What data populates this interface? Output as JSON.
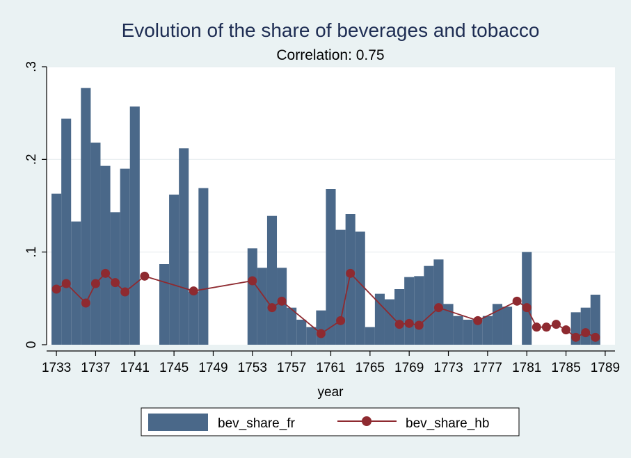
{
  "chart_data": {
    "title": "Evolution of the share of beverages and tobacco",
    "subtitle": "Correlation: 0.75",
    "xlabel": "year",
    "ylabel": "",
    "xlim": [
      1732,
      1790
    ],
    "ylim": [
      0,
      0.3
    ],
    "x_ticks": [
      1733,
      1737,
      1741,
      1745,
      1749,
      1753,
      1757,
      1761,
      1765,
      1769,
      1773,
      1777,
      1781,
      1785,
      1789
    ],
    "x_tick_labels": [
      "1733",
      "1737",
      "1741",
      "1745",
      "1749",
      "1753",
      "1757",
      "1761",
      "1765",
      "1769",
      "1773",
      "1777",
      "1781",
      "1785",
      "1789"
    ],
    "y_ticks": [
      0,
      0.1,
      0.2,
      0.3
    ],
    "y_tick_labels": [
      "0",
      ".1",
      ".2",
      ".3"
    ],
    "grid": true,
    "legend_position": "bottom",
    "colors": {
      "bar": "#4A6889",
      "line": "#8E2A30",
      "plot_bg": "#FFFFFF",
      "outer_bg": "#EAF2F3",
      "grid": "#E8EEF0"
    },
    "series": [
      {
        "name": "bev_share_fr",
        "type": "bar",
        "points": [
          {
            "x": 1733,
            "y": 0.163
          },
          {
            "x": 1734,
            "y": 0.244
          },
          {
            "x": 1735,
            "y": 0.133
          },
          {
            "x": 1736,
            "y": 0.277
          },
          {
            "x": 1737,
            "y": 0.218
          },
          {
            "x": 1738,
            "y": 0.193
          },
          {
            "x": 1739,
            "y": 0.143
          },
          {
            "x": 1740,
            "y": 0.19
          },
          {
            "x": 1741,
            "y": 0.257
          },
          {
            "x": 1744,
            "y": 0.087
          },
          {
            "x": 1745,
            "y": 0.162
          },
          {
            "x": 1746,
            "y": 0.212
          },
          {
            "x": 1747,
            "y": 0.057
          },
          {
            "x": 1748,
            "y": 0.169
          },
          {
            "x": 1753,
            "y": 0.104
          },
          {
            "x": 1754,
            "y": 0.083
          },
          {
            "x": 1755,
            "y": 0.139
          },
          {
            "x": 1756,
            "y": 0.083
          },
          {
            "x": 1757,
            "y": 0.04
          },
          {
            "x": 1758,
            "y": 0.027
          },
          {
            "x": 1759,
            "y": 0.019
          },
          {
            "x": 1760,
            "y": 0.037
          },
          {
            "x": 1761,
            "y": 0.168
          },
          {
            "x": 1762,
            "y": 0.124
          },
          {
            "x": 1763,
            "y": 0.141
          },
          {
            "x": 1764,
            "y": 0.122
          },
          {
            "x": 1765,
            "y": 0.019
          },
          {
            "x": 1766,
            "y": 0.055
          },
          {
            "x": 1767,
            "y": 0.049
          },
          {
            "x": 1768,
            "y": 0.06
          },
          {
            "x": 1769,
            "y": 0.073
          },
          {
            "x": 1770,
            "y": 0.074
          },
          {
            "x": 1771,
            "y": 0.085
          },
          {
            "x": 1772,
            "y": 0.092
          },
          {
            "x": 1773,
            "y": 0.044
          },
          {
            "x": 1774,
            "y": 0.031
          },
          {
            "x": 1775,
            "y": 0.027
          },
          {
            "x": 1776,
            "y": 0.028
          },
          {
            "x": 1777,
            "y": 0.031
          },
          {
            "x": 1778,
            "y": 0.044
          },
          {
            "x": 1779,
            "y": 0.041
          },
          {
            "x": 1781,
            "y": 0.1
          },
          {
            "x": 1786,
            "y": 0.035
          },
          {
            "x": 1787,
            "y": 0.04
          },
          {
            "x": 1788,
            "y": 0.054
          }
        ]
      },
      {
        "name": "bev_share_hb",
        "type": "line",
        "marker": "circle",
        "points": [
          {
            "x": 1733,
            "y": 0.06
          },
          {
            "x": 1734,
            "y": 0.066
          },
          {
            "x": 1736,
            "y": 0.045
          },
          {
            "x": 1737,
            "y": 0.066
          },
          {
            "x": 1738,
            "y": 0.077
          },
          {
            "x": 1739,
            "y": 0.067
          },
          {
            "x": 1740,
            "y": 0.057
          },
          {
            "x": 1742,
            "y": 0.074
          },
          {
            "x": 1747,
            "y": 0.058
          },
          {
            "x": 1753,
            "y": 0.069
          },
          {
            "x": 1755,
            "y": 0.04
          },
          {
            "x": 1756,
            "y": 0.047
          },
          {
            "x": 1760,
            "y": 0.012
          },
          {
            "x": 1762,
            "y": 0.026
          },
          {
            "x": 1763,
            "y": 0.077
          },
          {
            "x": 1768,
            "y": 0.022
          },
          {
            "x": 1769,
            "y": 0.023
          },
          {
            "x": 1770,
            "y": 0.021
          },
          {
            "x": 1772,
            "y": 0.04
          },
          {
            "x": 1776,
            "y": 0.026
          },
          {
            "x": 1780,
            "y": 0.047
          },
          {
            "x": 1781,
            "y": 0.04
          },
          {
            "x": 1782,
            "y": 0.019
          },
          {
            "x": 1783,
            "y": 0.019
          },
          {
            "x": 1784,
            "y": 0.022
          },
          {
            "x": 1785,
            "y": 0.016
          },
          {
            "x": 1786,
            "y": 0.008
          },
          {
            "x": 1787,
            "y": 0.013
          },
          {
            "x": 1788,
            "y": 0.008
          }
        ]
      }
    ]
  }
}
